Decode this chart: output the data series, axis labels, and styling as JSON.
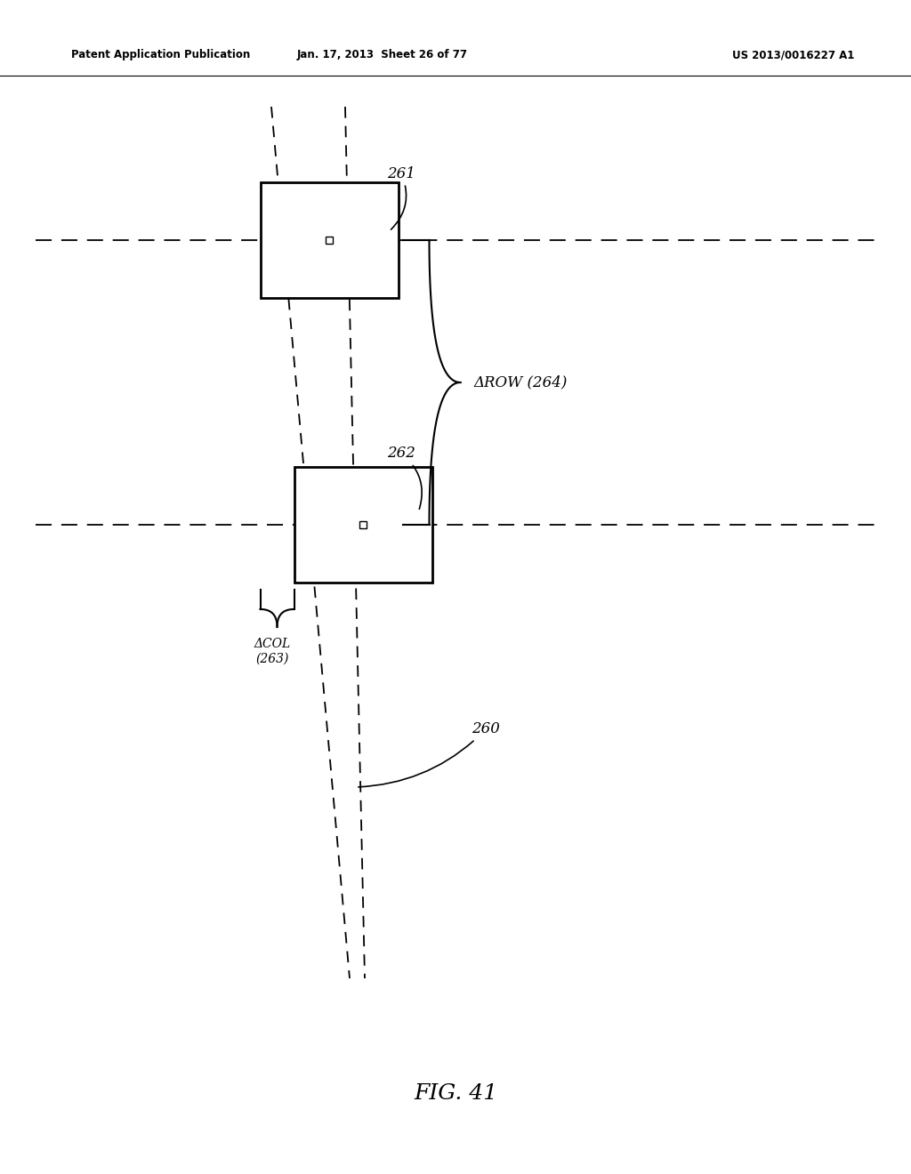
{
  "bg_color": "#ffffff",
  "header_text": "Patent Application Publication",
  "header_date": "Jan. 17, 2013  Sheet 26 of 77",
  "header_patent": "US 2013/0016227 A1",
  "fig_label": "FIG. 41",
  "label_261": "261",
  "label_262": "262",
  "label_263": "ΔCOL\n(263)",
  "label_264": "ΔROW (264)",
  "label_260": "260"
}
